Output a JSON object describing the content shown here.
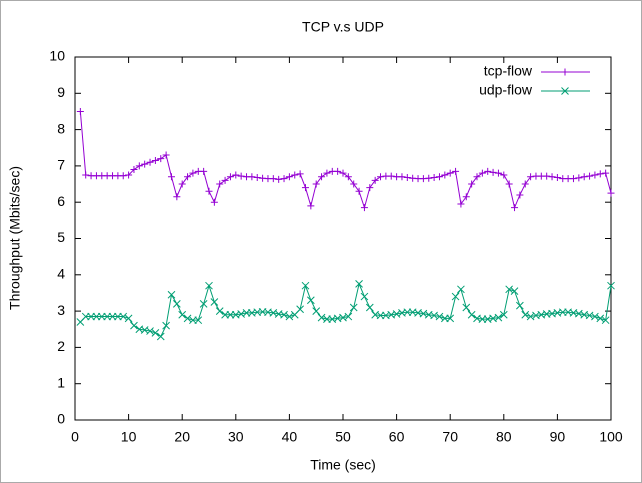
{
  "chart_data": {
    "type": "line",
    "title": "TCP v.s UDP",
    "x_label": "Time (sec)",
    "y_label": "Throughput (Mbits/sec)",
    "x": [
      1,
      2,
      3,
      4,
      5,
      6,
      7,
      8,
      9,
      10,
      11,
      12,
      13,
      14,
      15,
      16,
      17,
      18,
      19,
      20,
      21,
      22,
      23,
      24,
      25,
      26,
      27,
      28,
      29,
      30,
      31,
      32,
      33,
      34,
      35,
      36,
      37,
      38,
      39,
      40,
      41,
      42,
      43,
      44,
      45,
      46,
      47,
      48,
      49,
      50,
      51,
      52,
      53,
      54,
      55,
      56,
      57,
      58,
      59,
      60,
      61,
      62,
      63,
      64,
      65,
      66,
      67,
      68,
      69,
      70,
      71,
      72,
      73,
      74,
      75,
      76,
      77,
      78,
      79,
      80,
      81,
      82,
      83,
      84,
      85,
      86,
      87,
      88,
      89,
      90,
      91,
      92,
      93,
      94,
      95,
      96,
      97,
      98,
      99,
      100
    ],
    "series": [
      {
        "name": "tcp-flow",
        "color": "#9400d3",
        "marker": "+",
        "values": [
          8.5,
          6.75,
          6.73,
          6.73,
          6.73,
          6.73,
          6.73,
          6.73,
          6.73,
          6.75,
          6.9,
          7.0,
          7.05,
          7.1,
          7.15,
          7.2,
          7.3,
          6.7,
          6.15,
          6.5,
          6.7,
          6.8,
          6.85,
          6.85,
          6.3,
          6.0,
          6.5,
          6.6,
          6.7,
          6.75,
          6.72,
          6.7,
          6.7,
          6.68,
          6.66,
          6.65,
          6.65,
          6.63,
          6.65,
          6.7,
          6.75,
          6.78,
          6.4,
          5.9,
          6.5,
          6.7,
          6.8,
          6.85,
          6.85,
          6.8,
          6.7,
          6.5,
          6.3,
          5.85,
          6.4,
          6.6,
          6.7,
          6.72,
          6.72,
          6.7,
          6.7,
          6.68,
          6.66,
          6.65,
          6.65,
          6.66,
          6.68,
          6.7,
          6.75,
          6.8,
          6.85,
          5.95,
          6.15,
          6.5,
          6.7,
          6.8,
          6.85,
          6.82,
          6.8,
          6.75,
          6.5,
          5.85,
          6.2,
          6.5,
          6.7,
          6.72,
          6.72,
          6.72,
          6.7,
          6.68,
          6.65,
          6.65,
          6.65,
          6.67,
          6.7,
          6.72,
          6.75,
          6.78,
          6.8,
          6.25
        ]
      },
      {
        "name": "udp-flow",
        "color": "#009e73",
        "marker": "x",
        "values": [
          2.7,
          2.85,
          2.85,
          2.85,
          2.85,
          2.85,
          2.85,
          2.85,
          2.85,
          2.8,
          2.6,
          2.5,
          2.48,
          2.45,
          2.4,
          2.3,
          2.6,
          3.45,
          3.2,
          2.9,
          2.8,
          2.75,
          2.75,
          3.2,
          3.7,
          3.25,
          3.0,
          2.9,
          2.9,
          2.9,
          2.92,
          2.95,
          2.95,
          2.97,
          2.98,
          2.97,
          2.95,
          2.92,
          2.9,
          2.85,
          2.9,
          3.05,
          3.7,
          3.3,
          3.0,
          2.82,
          2.78,
          2.78,
          2.8,
          2.82,
          2.85,
          3.1,
          3.75,
          3.4,
          3.1,
          2.9,
          2.88,
          2.88,
          2.9,
          2.92,
          2.95,
          2.97,
          2.97,
          2.95,
          2.93,
          2.9,
          2.88,
          2.85,
          2.8,
          2.8,
          3.4,
          3.6,
          3.1,
          2.9,
          2.8,
          2.78,
          2.78,
          2.8,
          2.82,
          2.9,
          3.6,
          3.55,
          3.15,
          2.9,
          2.85,
          2.88,
          2.9,
          2.92,
          2.93,
          2.95,
          2.97,
          2.97,
          2.95,
          2.93,
          2.9,
          2.88,
          2.85,
          2.8,
          2.75,
          3.7
        ]
      }
    ],
    "xlim": [
      0,
      100
    ],
    "xticks": [
      0,
      10,
      20,
      30,
      40,
      50,
      60,
      70,
      80,
      90,
      100
    ],
    "ylim": [
      0,
      10
    ],
    "yticks": [
      0,
      1,
      2,
      3,
      4,
      5,
      6,
      7,
      8,
      9,
      10
    ],
    "legend": "top-right",
    "grid": false
  }
}
